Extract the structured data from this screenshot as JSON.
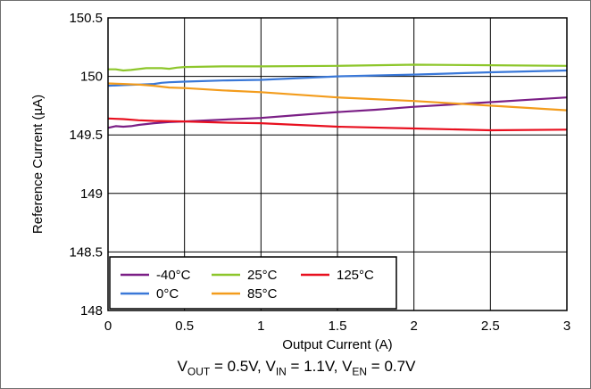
{
  "chart_data": {
    "type": "line",
    "xlabel": "Output Current (A)",
    "ylabel": "Reference Current (µA)",
    "xlim": [
      0,
      3
    ],
    "ylim": [
      148,
      150.5
    ],
    "xticks": [
      "0",
      "0.5",
      "1",
      "1.5",
      "2",
      "2.5",
      "3"
    ],
    "yticks": [
      "148",
      "148.5",
      "149",
      "149.5",
      "150",
      "150.5"
    ],
    "grid": true,
    "legend": "bottom-left",
    "series": [
      {
        "name": "-40°C",
        "color": "#7b1f86",
        "x": [
          0,
          0.05,
          0.1,
          0.15,
          0.2,
          0.3,
          0.4,
          0.5,
          0.75,
          1,
          1.25,
          1.5,
          1.75,
          2,
          2.25,
          2.5,
          2.75,
          3
        ],
        "y": [
          149.56,
          149.575,
          149.57,
          149.575,
          149.585,
          149.6,
          149.61,
          149.615,
          149.63,
          149.645,
          149.67,
          149.695,
          149.715,
          149.74,
          149.76,
          149.78,
          149.8,
          149.82
        ]
      },
      {
        "name": "25°C",
        "color": "#8dc62b",
        "x": [
          0,
          0.05,
          0.1,
          0.15,
          0.25,
          0.35,
          0.4,
          0.45,
          0.5,
          0.75,
          1,
          1.5,
          2,
          2.5,
          3
        ],
        "y": [
          150.06,
          150.06,
          150.05,
          150.055,
          150.07,
          150.07,
          150.065,
          150.075,
          150.08,
          150.085,
          150.085,
          150.09,
          150.1,
          150.095,
          150.09
        ]
      },
      {
        "name": "125°C",
        "color": "#e8101f",
        "x": [
          0,
          0.1,
          0.2,
          0.3,
          0.5,
          0.75,
          1,
          1.5,
          2,
          2.5,
          3
        ],
        "y": [
          149.64,
          149.635,
          149.625,
          149.62,
          149.615,
          149.605,
          149.6,
          149.57,
          149.555,
          149.54,
          149.545
        ]
      },
      {
        "name": "0°C",
        "color": "#3a78d8",
        "x": [
          0,
          0.1,
          0.2,
          0.3,
          0.35,
          0.4,
          0.5,
          0.75,
          1,
          1.5,
          2,
          2.5,
          3
        ],
        "y": [
          149.92,
          149.925,
          149.93,
          149.935,
          149.945,
          149.95,
          149.955,
          149.965,
          149.97,
          150,
          150.015,
          150.035,
          150.05
        ]
      },
      {
        "name": "85°C",
        "color": "#f39c1c",
        "x": [
          0,
          0.1,
          0.2,
          0.3,
          0.4,
          0.5,
          0.75,
          1,
          1.5,
          2,
          2.5,
          3
        ],
        "y": [
          149.94,
          149.935,
          149.93,
          149.92,
          149.905,
          149.9,
          149.88,
          149.865,
          149.82,
          149.79,
          149.75,
          149.71
        ]
      }
    ]
  },
  "caption": {
    "vout_var": "V",
    "vout_sub": "OUT",
    "vout_val": " = 0.5V, ",
    "vin_var": "V",
    "vin_sub": "IN",
    "vin_val": " = 1.1V, ",
    "ven_var": "V",
    "ven_sub": "EN",
    "ven_val": " = 0.7V"
  }
}
